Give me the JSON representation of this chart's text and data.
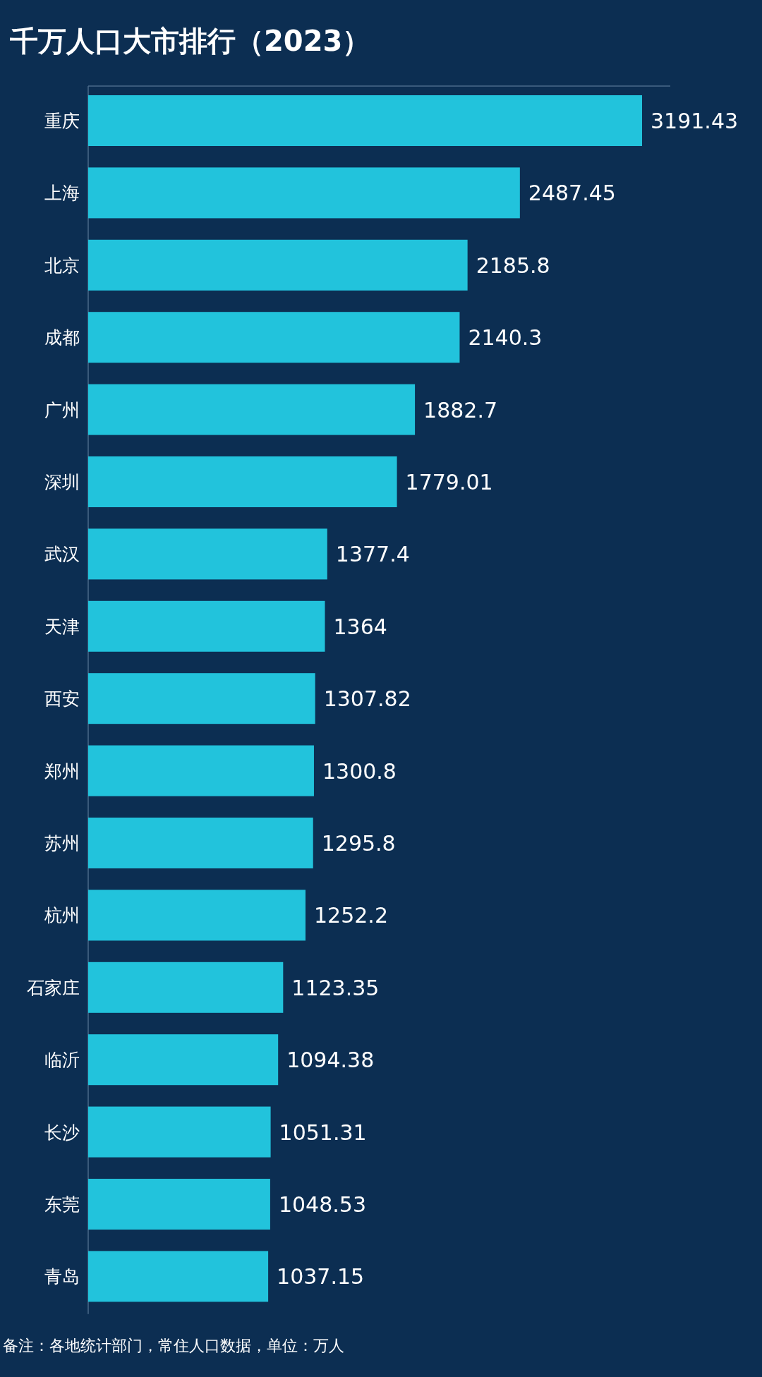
{
  "chart_data": {
    "type": "bar",
    "orientation": "horizontal",
    "title": "千万人口大市排行（2023）",
    "categories": [
      "重庆",
      "上海",
      "北京",
      "成都",
      "广州",
      "深圳",
      "武汉",
      "天津",
      "西安",
      "郑州",
      "苏州",
      "杭州",
      "石家庄",
      "临沂",
      "长沙",
      "东莞",
      "青岛"
    ],
    "values": [
      3191.43,
      2487.45,
      2185.8,
      2140.3,
      1882.7,
      1779.01,
      1377.4,
      1364,
      1307.82,
      1300.8,
      1295.8,
      1252.2,
      1123.35,
      1094.38,
      1051.31,
      1048.53,
      1037.15
    ],
    "color": "#22c3dc",
    "data_labels": true,
    "annotations": [
      "备注：各地统计部门，常住人口数据，单位：万人"
    ]
  }
}
